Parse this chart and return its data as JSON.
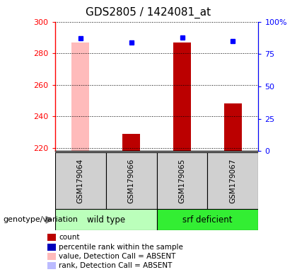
{
  "title": "GDS2805 / 1424081_at",
  "samples": [
    "GSM179064",
    "GSM179066",
    "GSM179065",
    "GSM179067"
  ],
  "bar_values": [
    287,
    229,
    287,
    248
  ],
  "bar_colors": [
    "#ffbbbb",
    "#bb0000",
    "#bb0000",
    "#bb0000"
  ],
  "bar_absent": [
    true,
    false,
    false,
    false
  ],
  "dot_values_pct": [
    87,
    84,
    88,
    85
  ],
  "ylim_left": [
    218,
    300
  ],
  "ylim_right": [
    0,
    100
  ],
  "yticks_left": [
    220,
    240,
    260,
    280,
    300
  ],
  "yticks_right": [
    0,
    25,
    50,
    75,
    100
  ],
  "ytick_labels_right": [
    "0",
    "25",
    "50",
    "75",
    "100%"
  ],
  "groups": [
    {
      "label": "wild type",
      "indices": [
        0,
        1
      ],
      "color": "#bbffbb"
    },
    {
      "label": "srf deficient",
      "indices": [
        2,
        3
      ],
      "color": "#33ee33"
    }
  ],
  "legend_items": [
    {
      "label": "count",
      "color": "#bb0000"
    },
    {
      "label": "percentile rank within the sample",
      "color": "#0000bb"
    },
    {
      "label": "value, Detection Call = ABSENT",
      "color": "#ffbbbb"
    },
    {
      "label": "rank, Detection Call = ABSENT",
      "color": "#bbbbff"
    }
  ],
  "genotype_label": "genotype/variation",
  "bar_bottom": 218,
  "bar_width": 0.35
}
